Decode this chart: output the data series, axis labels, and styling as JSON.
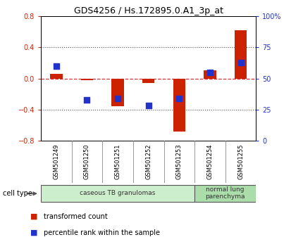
{
  "title": "GDS4256 / Hs.172895.0.A1_3p_at",
  "samples": [
    "GSM501249",
    "GSM501250",
    "GSM501251",
    "GSM501252",
    "GSM501253",
    "GSM501254",
    "GSM501255"
  ],
  "transformed_count": [
    0.06,
    -0.02,
    -0.36,
    -0.06,
    -0.68,
    0.1,
    0.62
  ],
  "percentile_rank_pct": [
    60,
    33,
    34,
    28,
    34,
    55,
    63
  ],
  "ylim_left": [
    -0.8,
    0.8
  ],
  "ylim_right": [
    0,
    100
  ],
  "yticks_left": [
    -0.8,
    -0.4,
    0,
    0.4,
    0.8
  ],
  "yticks_right": [
    0,
    25,
    50,
    75,
    100
  ],
  "yticklabels_right": [
    "0",
    "25",
    "50",
    "75",
    "100%"
  ],
  "bar_color": "#cc2200",
  "square_color": "#2233cc",
  "dashed_line_color": "#cc3333",
  "dotted_line_color": "#555555",
  "cell_type_groups": [
    {
      "label": "caseous TB granulomas",
      "samples": [
        0,
        1,
        2,
        3,
        4
      ],
      "color": "#cceecc"
    },
    {
      "label": "normal lung\nparenchyma",
      "samples": [
        5,
        6
      ],
      "color": "#aaddaa"
    }
  ],
  "cell_type_label": "cell type",
  "legend_items": [
    {
      "color": "#cc2200",
      "label": "transformed count"
    },
    {
      "color": "#2233cc",
      "label": "percentile rank within the sample"
    }
  ],
  "bar_width": 0.4,
  "square_size": 28,
  "background_color": "#ffffff",
  "plot_bg_color": "#ffffff",
  "label_bg_color": "#cccccc"
}
